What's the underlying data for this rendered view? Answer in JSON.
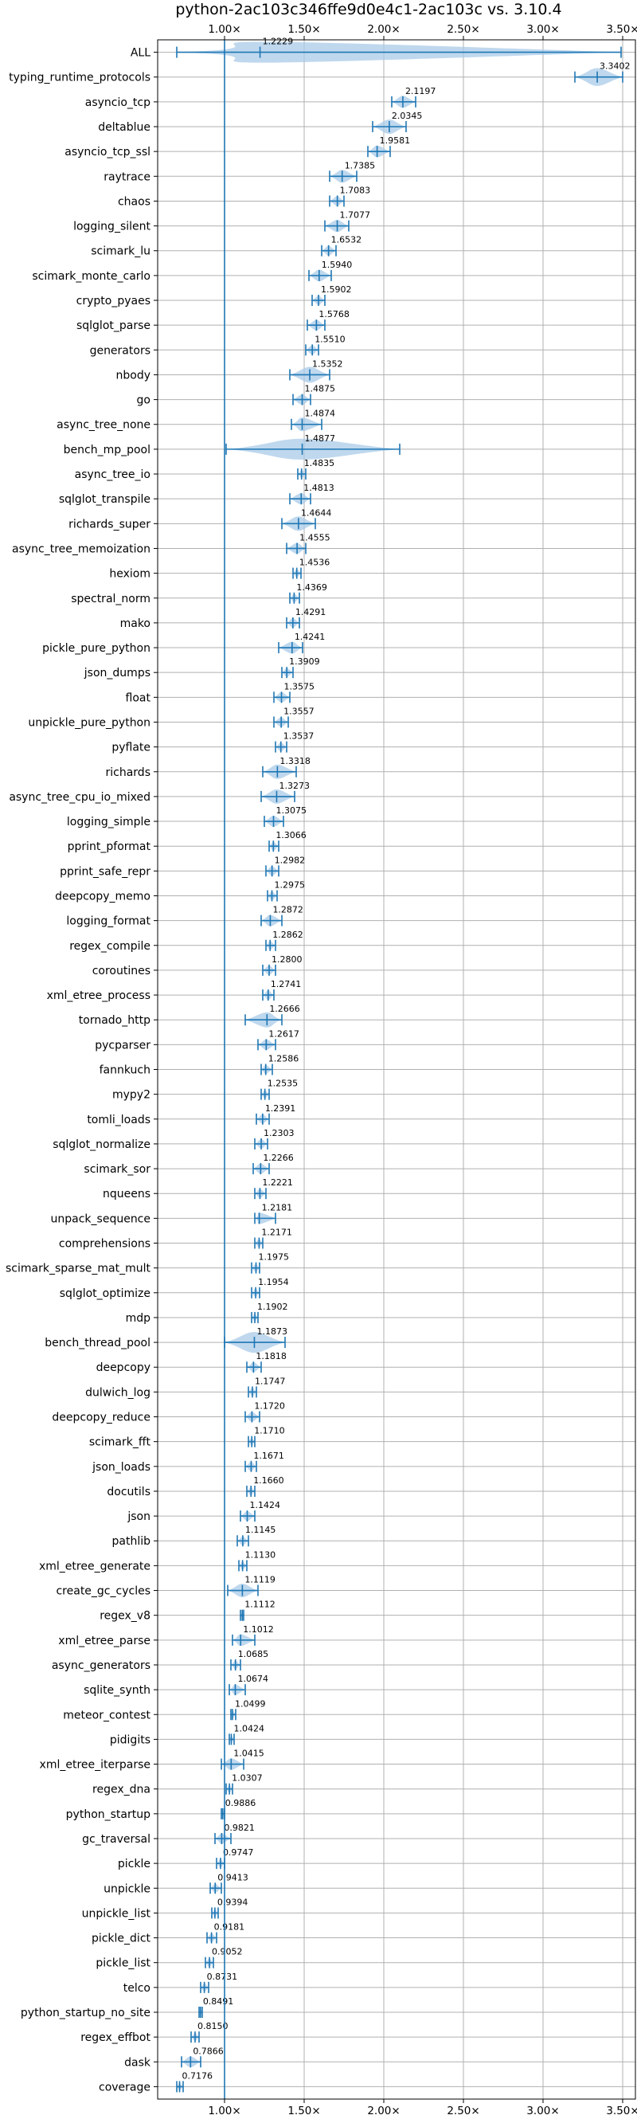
{
  "chart_data": {
    "type": "violin",
    "title": "python-2ac103c346ffe9d0e4c1-2ac103c vs. 3.10.4",
    "xlabel": "",
    "ylabel": "",
    "xlim": [
      0.58,
      3.58
    ],
    "xticks": [
      {
        "value": 1.0,
        "label": "1.00×"
      },
      {
        "value": 1.5,
        "label": "1.50×"
      },
      {
        "value": 2.0,
        "label": "2.00×"
      },
      {
        "value": 2.5,
        "label": "2.50×"
      },
      {
        "value": 3.0,
        "label": "3.00×"
      },
      {
        "value": 3.5,
        "label": "3.50×"
      }
    ],
    "reference_line": 1.0,
    "grid": true,
    "colors": {
      "violin": "#a9cbe8",
      "lines": "#1f77b4"
    },
    "categories": [
      {
        "name": "ALL",
        "value": 1.2229,
        "min": 0.7,
        "max": 3.49
      },
      {
        "name": "typing_runtime_protocols",
        "value": 3.3402,
        "min": 3.2,
        "max": 3.5
      },
      {
        "name": "asyncio_tcp",
        "value": 2.1197,
        "min": 2.05,
        "max": 2.2
      },
      {
        "name": "deltablue",
        "value": 2.0345,
        "min": 1.93,
        "max": 2.14
      },
      {
        "name": "asyncio_tcp_ssl",
        "value": 1.9581,
        "min": 1.9,
        "max": 2.04
      },
      {
        "name": "raytrace",
        "value": 1.7385,
        "min": 1.66,
        "max": 1.83
      },
      {
        "name": "chaos",
        "value": 1.7083,
        "min": 1.66,
        "max": 1.75
      },
      {
        "name": "logging_silent",
        "value": 1.7077,
        "min": 1.63,
        "max": 1.78
      },
      {
        "name": "scimark_lu",
        "value": 1.6532,
        "min": 1.61,
        "max": 1.7
      },
      {
        "name": "scimark_monte_carlo",
        "value": 1.594,
        "min": 1.53,
        "max": 1.67
      },
      {
        "name": "crypto_pyaes",
        "value": 1.5902,
        "min": 1.55,
        "max": 1.63
      },
      {
        "name": "sqlglot_parse",
        "value": 1.5768,
        "min": 1.52,
        "max": 1.63
      },
      {
        "name": "generators",
        "value": 1.551,
        "min": 1.51,
        "max": 1.59
      },
      {
        "name": "nbody",
        "value": 1.5352,
        "min": 1.41,
        "max": 1.66
      },
      {
        "name": "go",
        "value": 1.4875,
        "min": 1.43,
        "max": 1.54
      },
      {
        "name": "async_tree_none",
        "value": 1.4874,
        "min": 1.42,
        "max": 1.61
      },
      {
        "name": "bench_mp_pool",
        "value": 1.4877,
        "min": 1.01,
        "max": 2.1
      },
      {
        "name": "async_tree_io",
        "value": 1.4835,
        "min": 1.46,
        "max": 1.51
      },
      {
        "name": "sqlglot_transpile",
        "value": 1.4813,
        "min": 1.41,
        "max": 1.54
      },
      {
        "name": "richards_super",
        "value": 1.4644,
        "min": 1.36,
        "max": 1.57
      },
      {
        "name": "async_tree_memoization",
        "value": 1.4555,
        "min": 1.39,
        "max": 1.51
      },
      {
        "name": "hexiom",
        "value": 1.4536,
        "min": 1.43,
        "max": 1.48
      },
      {
        "name": "spectral_norm",
        "value": 1.4369,
        "min": 1.41,
        "max": 1.47
      },
      {
        "name": "mako",
        "value": 1.4291,
        "min": 1.39,
        "max": 1.47
      },
      {
        "name": "pickle_pure_python",
        "value": 1.4241,
        "min": 1.34,
        "max": 1.49
      },
      {
        "name": "json_dumps",
        "value": 1.3909,
        "min": 1.36,
        "max": 1.43
      },
      {
        "name": "float",
        "value": 1.3575,
        "min": 1.31,
        "max": 1.41
      },
      {
        "name": "unpickle_pure_python",
        "value": 1.3557,
        "min": 1.31,
        "max": 1.4
      },
      {
        "name": "pyflate",
        "value": 1.3537,
        "min": 1.32,
        "max": 1.39
      },
      {
        "name": "richards",
        "value": 1.3318,
        "min": 1.24,
        "max": 1.45
      },
      {
        "name": "async_tree_cpu_io_mixed",
        "value": 1.3273,
        "min": 1.23,
        "max": 1.44
      },
      {
        "name": "logging_simple",
        "value": 1.3075,
        "min": 1.25,
        "max": 1.37
      },
      {
        "name": "pprint_pformat",
        "value": 1.3066,
        "min": 1.28,
        "max": 1.34
      },
      {
        "name": "pprint_safe_repr",
        "value": 1.2982,
        "min": 1.26,
        "max": 1.34
      },
      {
        "name": "deepcopy_memo",
        "value": 1.2975,
        "min": 1.27,
        "max": 1.33
      },
      {
        "name": "logging_format",
        "value": 1.2872,
        "min": 1.23,
        "max": 1.36
      },
      {
        "name": "regex_compile",
        "value": 1.2862,
        "min": 1.26,
        "max": 1.32
      },
      {
        "name": "coroutines",
        "value": 1.28,
        "min": 1.24,
        "max": 1.32
      },
      {
        "name": "xml_etree_process",
        "value": 1.2741,
        "min": 1.24,
        "max": 1.31
      },
      {
        "name": "tornado_http",
        "value": 1.2666,
        "min": 1.13,
        "max": 1.36
      },
      {
        "name": "pycparser",
        "value": 1.2617,
        "min": 1.21,
        "max": 1.32
      },
      {
        "name": "fannkuch",
        "value": 1.2586,
        "min": 1.23,
        "max": 1.3
      },
      {
        "name": "mypy2",
        "value": 1.2535,
        "min": 1.23,
        "max": 1.28
      },
      {
        "name": "tomli_loads",
        "value": 1.2391,
        "min": 1.2,
        "max": 1.28
      },
      {
        "name": "sqlglot_normalize",
        "value": 1.2303,
        "min": 1.19,
        "max": 1.27
      },
      {
        "name": "scimark_sor",
        "value": 1.2266,
        "min": 1.18,
        "max": 1.28
      },
      {
        "name": "nqueens",
        "value": 1.2221,
        "min": 1.19,
        "max": 1.26
      },
      {
        "name": "unpack_sequence",
        "value": 1.2181,
        "min": 1.19,
        "max": 1.32
      },
      {
        "name": "comprehensions",
        "value": 1.2171,
        "min": 1.19,
        "max": 1.24
      },
      {
        "name": "scimark_sparse_mat_mult",
        "value": 1.1975,
        "min": 1.17,
        "max": 1.22
      },
      {
        "name": "sqlglot_optimize",
        "value": 1.1954,
        "min": 1.17,
        "max": 1.22
      },
      {
        "name": "mdp",
        "value": 1.1902,
        "min": 1.17,
        "max": 1.21
      },
      {
        "name": "bench_thread_pool",
        "value": 1.1873,
        "min": 1.0,
        "max": 1.38
      },
      {
        "name": "deepcopy",
        "value": 1.1818,
        "min": 1.14,
        "max": 1.23
      },
      {
        "name": "dulwich_log",
        "value": 1.1747,
        "min": 1.15,
        "max": 1.2
      },
      {
        "name": "deepcopy_reduce",
        "value": 1.172,
        "min": 1.13,
        "max": 1.22
      },
      {
        "name": "scimark_fft",
        "value": 1.171,
        "min": 1.15,
        "max": 1.19
      },
      {
        "name": "json_loads",
        "value": 1.1671,
        "min": 1.13,
        "max": 1.2
      },
      {
        "name": "docutils",
        "value": 1.166,
        "min": 1.14,
        "max": 1.19
      },
      {
        "name": "json",
        "value": 1.1424,
        "min": 1.1,
        "max": 1.19
      },
      {
        "name": "pathlib",
        "value": 1.1145,
        "min": 1.08,
        "max": 1.15
      },
      {
        "name": "xml_etree_generate",
        "value": 1.113,
        "min": 1.09,
        "max": 1.14
      },
      {
        "name": "create_gc_cycles",
        "value": 1.1119,
        "min": 1.02,
        "max": 1.21
      },
      {
        "name": "regex_v8",
        "value": 1.1112,
        "min": 1.1,
        "max": 1.12
      },
      {
        "name": "xml_etree_parse",
        "value": 1.1012,
        "min": 1.05,
        "max": 1.19
      },
      {
        "name": "async_generators",
        "value": 1.0685,
        "min": 1.04,
        "max": 1.1
      },
      {
        "name": "sqlite_synth",
        "value": 1.0674,
        "min": 1.03,
        "max": 1.13
      },
      {
        "name": "meteor_contest",
        "value": 1.0499,
        "min": 1.04,
        "max": 1.07
      },
      {
        "name": "pidigits",
        "value": 1.0424,
        "min": 1.03,
        "max": 1.06
      },
      {
        "name": "xml_etree_iterparse",
        "value": 1.0415,
        "min": 0.98,
        "max": 1.12
      },
      {
        "name": "regex_dna",
        "value": 1.0307,
        "min": 1.01,
        "max": 1.05
      },
      {
        "name": "python_startup",
        "value": 0.9886,
        "min": 0.98,
        "max": 1.0
      },
      {
        "name": "gc_traversal",
        "value": 0.9821,
        "min": 0.94,
        "max": 1.04
      },
      {
        "name": "pickle",
        "value": 0.9747,
        "min": 0.95,
        "max": 1.0
      },
      {
        "name": "unpickle",
        "value": 0.9413,
        "min": 0.91,
        "max": 0.98
      },
      {
        "name": "unpickle_list",
        "value": 0.9394,
        "min": 0.92,
        "max": 0.96
      },
      {
        "name": "pickle_dict",
        "value": 0.9181,
        "min": 0.89,
        "max": 0.95
      },
      {
        "name": "pickle_list",
        "value": 0.9052,
        "min": 0.88,
        "max": 0.93
      },
      {
        "name": "telco",
        "value": 0.8731,
        "min": 0.85,
        "max": 0.9
      },
      {
        "name": "python_startup_no_site",
        "value": 0.8491,
        "min": 0.84,
        "max": 0.86
      },
      {
        "name": "regex_effbot",
        "value": 0.815,
        "min": 0.79,
        "max": 0.84
      },
      {
        "name": "dask",
        "value": 0.7866,
        "min": 0.73,
        "max": 0.85
      },
      {
        "name": "coverage",
        "value": 0.7176,
        "min": 0.7,
        "max": 0.74
      }
    ]
  }
}
